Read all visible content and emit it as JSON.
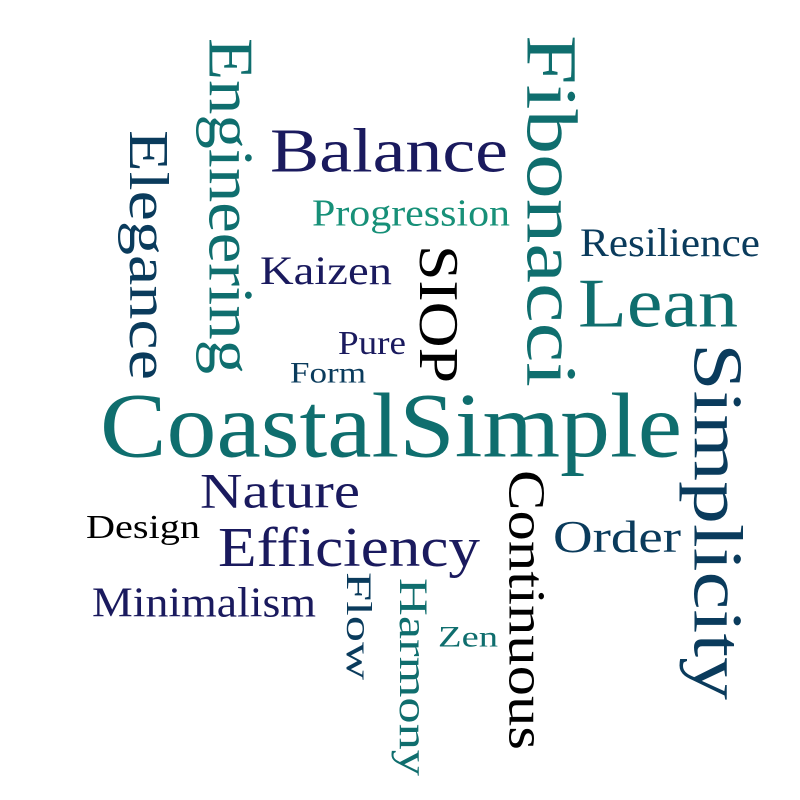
{
  "words": [
    {
      "text": "CoastalSimple",
      "color": "#0f6e6e",
      "weight": 100,
      "orientation": "horizontal"
    },
    {
      "text": "Fibonacci",
      "color": "#0f6e6e",
      "weight": 88,
      "orientation": "vertical"
    },
    {
      "text": "Simplicity",
      "color": "#0a3b5c",
      "weight": 85,
      "orientation": "vertical"
    },
    {
      "text": "Lean",
      "color": "#0f6e6e",
      "weight": 78,
      "orientation": "horizontal"
    },
    {
      "text": "Balance",
      "color": "#1a1a5e",
      "weight": 72,
      "orientation": "horizontal"
    },
    {
      "text": "Engineering",
      "color": "#0f6e6e",
      "weight": 66,
      "orientation": "vertical"
    },
    {
      "text": "Elegance",
      "color": "#0a3b5c",
      "weight": 64,
      "orientation": "vertical"
    },
    {
      "text": "Continuous",
      "color": "#000000",
      "weight": 60,
      "orientation": "vertical"
    },
    {
      "text": "SIOP",
      "color": "#000000",
      "weight": 58,
      "orientation": "vertical"
    },
    {
      "text": "Efficiency",
      "color": "#1a1a5e",
      "weight": 58,
      "orientation": "horizontal"
    },
    {
      "text": "Nature",
      "color": "#1a1a5e",
      "weight": 50,
      "orientation": "horizontal"
    },
    {
      "text": "Order",
      "color": "#0a3b5c",
      "weight": 45,
      "orientation": "horizontal"
    },
    {
      "text": "Kaizen",
      "color": "#1a1a5e",
      "weight": 42,
      "orientation": "horizontal"
    },
    {
      "text": "Harmony",
      "color": "#0f6e6e",
      "weight": 40,
      "orientation": "vertical"
    },
    {
      "text": "Resilience",
      "color": "#0a3b5c",
      "weight": 38,
      "orientation": "horizontal"
    },
    {
      "text": "Minimalism",
      "color": "#1a1a5e",
      "weight": 38,
      "orientation": "horizontal"
    },
    {
      "text": "Progression",
      "color": "#179078",
      "weight": 35,
      "orientation": "horizontal"
    },
    {
      "text": "Flow",
      "color": "#0a3b5c",
      "weight": 33,
      "orientation": "vertical"
    },
    {
      "text": "Design",
      "color": "#000000",
      "weight": 32,
      "orientation": "horizontal"
    },
    {
      "text": "Zen",
      "color": "#0f6e6e",
      "weight": 30,
      "orientation": "horizontal"
    },
    {
      "text": "Pure",
      "color": "#1a1a5e",
      "weight": 28,
      "orientation": "horizontal"
    },
    {
      "text": "Form",
      "color": "#0a3b5c",
      "weight": 27,
      "orientation": "horizontal"
    }
  ]
}
